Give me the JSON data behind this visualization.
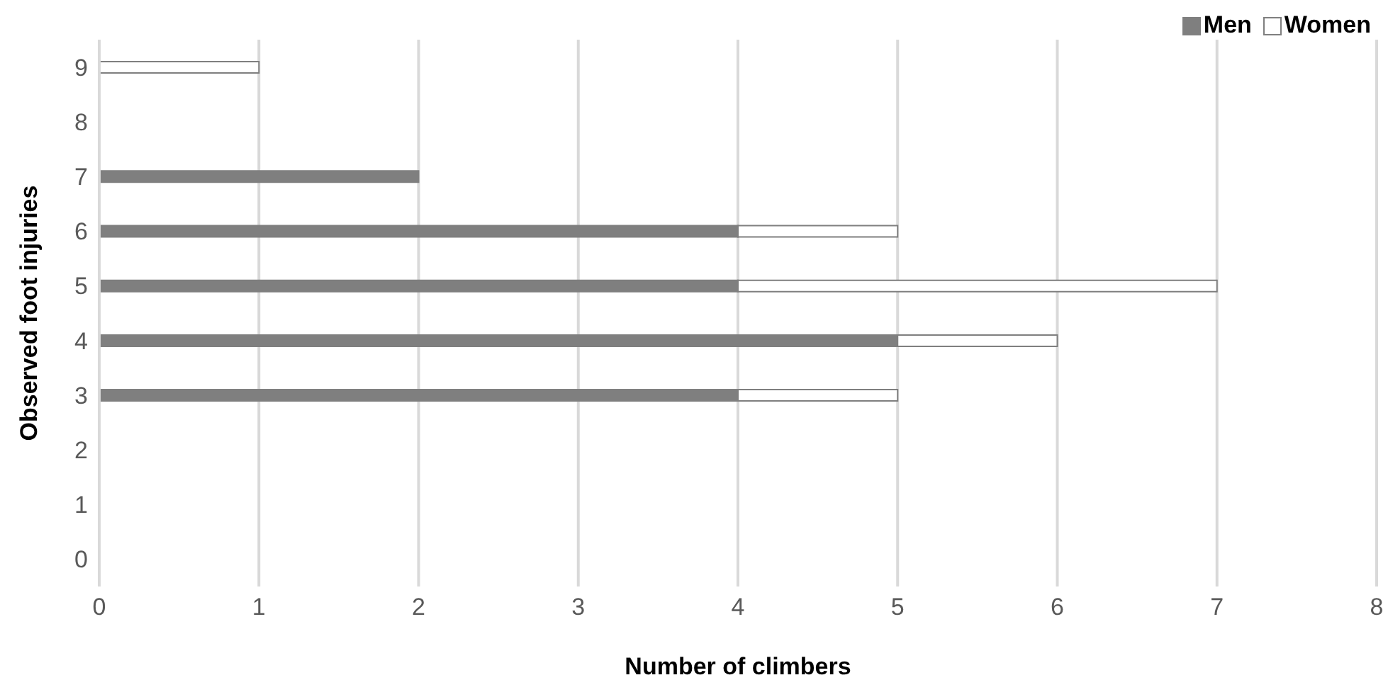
{
  "chart_data": {
    "type": "bar",
    "orientation": "horizontal",
    "stacked": true,
    "xlabel": "Number of climbers",
    "ylabel": "Observed foot injuries",
    "categories": [
      "9",
      "8",
      "7",
      "6",
      "5",
      "4",
      "3",
      "2",
      "1",
      "0"
    ],
    "series": [
      {
        "name": "Men",
        "color": "#7f7f7f",
        "values": [
          null,
          null,
          2,
          4,
          4,
          5,
          4,
          null,
          null,
          null
        ]
      },
      {
        "name": "Women",
        "color": "#ffffff",
        "values": [
          1,
          null,
          null,
          1,
          3,
          1,
          1,
          null,
          null,
          null
        ]
      }
    ],
    "xlim": [
      0,
      8
    ],
    "xticks": [
      0,
      1,
      2,
      3,
      4,
      5,
      6,
      7,
      8
    ],
    "grid": "x",
    "legend": "top right"
  }
}
